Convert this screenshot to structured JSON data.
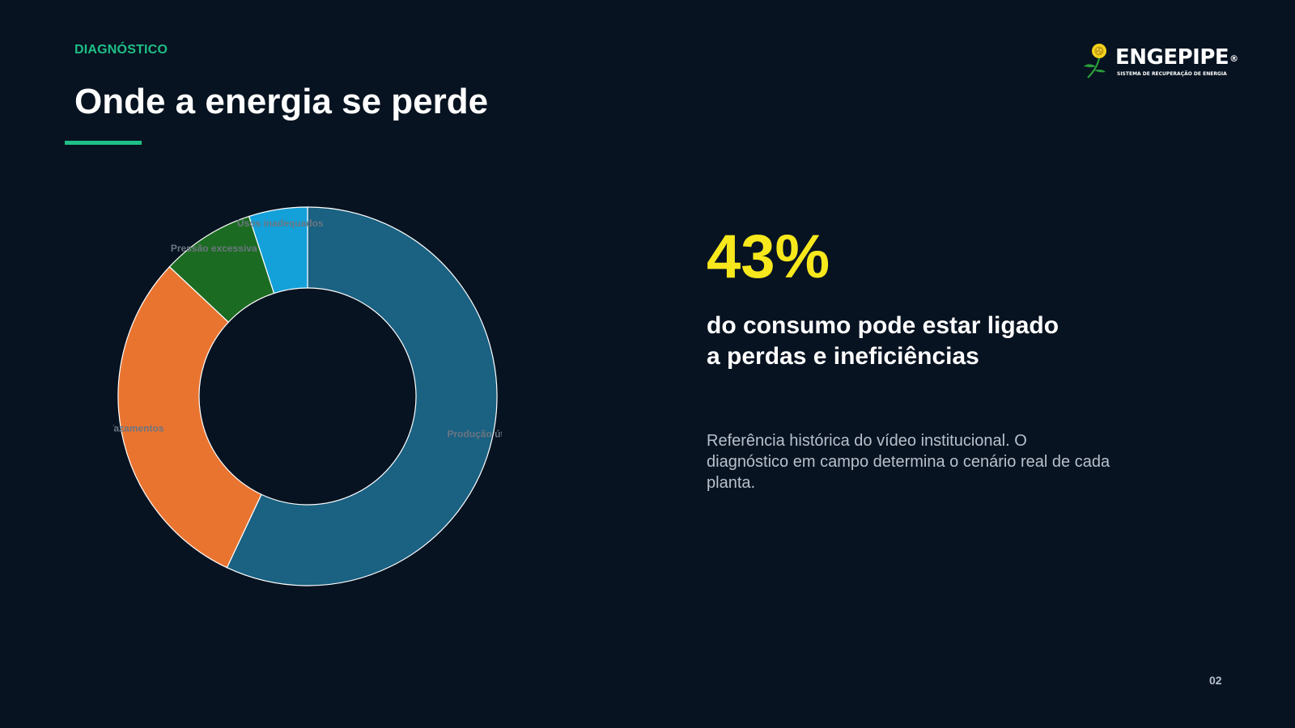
{
  "slide": {
    "section_label": "DIAGNÓSTICO",
    "title": "Onde a energia se perde",
    "page_number": "02",
    "accent_color": "#1fbf86",
    "background_color": "#071321"
  },
  "logo": {
    "wordmark": "ENGEPIPE",
    "registered": "®",
    "tagline": "SISTEMA DE RECUPERAÇÃO DE ENERGIA"
  },
  "stat": {
    "value": "43%",
    "line1": "do consumo pode estar ligado",
    "line2": "a perdas e ineficiências",
    "value_color": "#f6e81c",
    "note": "Referência histórica do vídeo institucional. O diagnóstico em campo determina o cenário real de cada planta."
  },
  "chart_data": {
    "type": "pie",
    "subtype": "donut",
    "title": "",
    "categories": [
      "Produção útil",
      "Vazamentos",
      "Pressão excessiva",
      "Usos inadequados"
    ],
    "values": [
      57,
      30,
      8,
      5
    ],
    "colors": [
      "#1a6182",
      "#e97430",
      "#1c6b22",
      "#14a0d9"
    ],
    "start_angle": "12 o'clock",
    "direction": "clockwise",
    "label_color": "#6b7580",
    "slice_border_color": "#ffffff",
    "legend": "none"
  }
}
